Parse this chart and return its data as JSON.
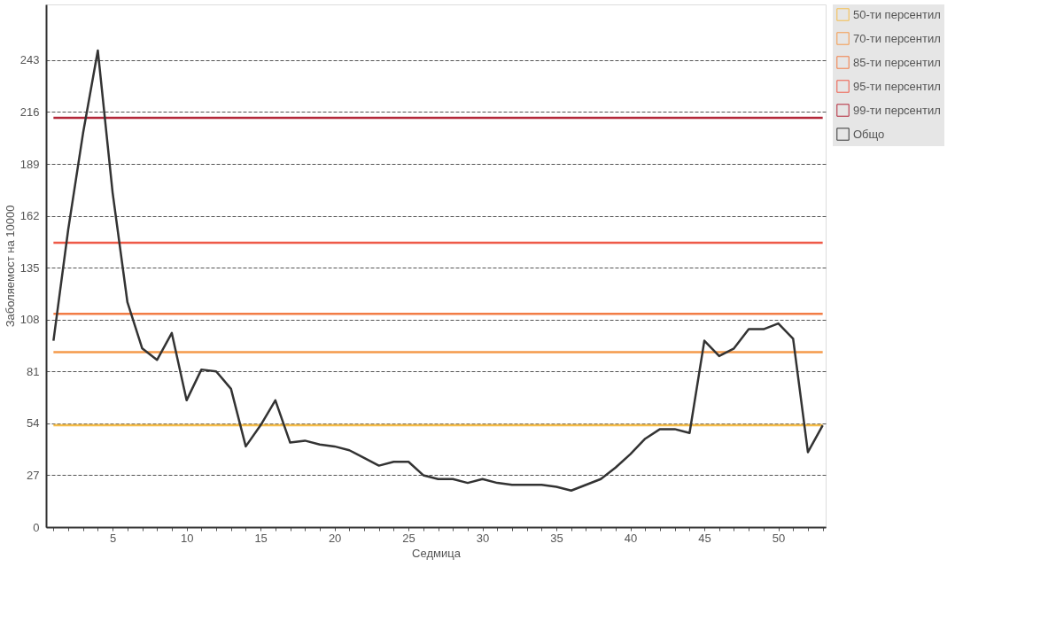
{
  "chart_data": {
    "type": "line",
    "xlabel": "Седмица",
    "ylabel": "Заболяемост на 10000",
    "xlim": [
      0.5,
      53.2
    ],
    "ylim": [
      0,
      272
    ],
    "yticks": [
      0,
      27,
      54,
      81,
      108,
      135,
      162,
      189,
      216,
      243
    ],
    "xticks": [
      {
        "value": 1,
        "label": null
      },
      {
        "value": 2,
        "label": null
      },
      {
        "value": 3,
        "label": null
      },
      {
        "value": 4,
        "label": null
      },
      5,
      {
        "value": 6,
        "label": null
      },
      {
        "value": 7,
        "label": null
      },
      {
        "value": 8,
        "label": null
      },
      {
        "value": 9,
        "label": null
      },
      10,
      {
        "value": 11,
        "label": null
      },
      {
        "value": 12,
        "label": null
      },
      {
        "value": 13,
        "label": null
      },
      {
        "value": 14,
        "label": null
      },
      15,
      {
        "value": 16,
        "label": null
      },
      {
        "value": 17,
        "label": null
      },
      {
        "value": 18,
        "label": null
      },
      {
        "value": 19,
        "label": null
      },
      20,
      {
        "value": 21,
        "label": null
      },
      {
        "value": 22,
        "label": null
      },
      {
        "value": 23,
        "label": null
      },
      {
        "value": 24,
        "label": null
      },
      25,
      {
        "value": 26,
        "label": null
      },
      {
        "value": 27,
        "label": null
      },
      {
        "value": 28,
        "label": null
      },
      {
        "value": 29,
        "label": null
      },
      30,
      {
        "value": 31,
        "label": null
      },
      {
        "value": 32,
        "label": null
      },
      {
        "value": 33,
        "label": null
      },
      {
        "value": 34,
        "label": null
      },
      35,
      {
        "value": 36,
        "label": null
      },
      {
        "value": 37,
        "label": null
      },
      {
        "value": 38,
        "label": null
      },
      {
        "value": 39,
        "label": null
      },
      40,
      {
        "value": 41,
        "label": null
      },
      {
        "value": 42,
        "label": null
      },
      {
        "value": 43,
        "label": null
      },
      {
        "value": 44,
        "label": null
      },
      45,
      {
        "value": 46,
        "label": null
      },
      {
        "value": 47,
        "label": null
      },
      {
        "value": 48,
        "label": null
      },
      {
        "value": 49,
        "label": null
      },
      50,
      {
        "value": 51,
        "label": null
      },
      {
        "value": 52,
        "label": null
      },
      {
        "value": 53,
        "label": null
      }
    ],
    "grid": "y",
    "legend": "top right",
    "marker": "none",
    "line_style": "solid",
    "series": [
      {
        "name": "50-ти персентил",
        "color": "#f5bd4a",
        "x": [
          1,
          53
        ],
        "values": [
          53,
          53
        ]
      },
      {
        "name": "70-ти персентил",
        "color": "#f59a4a",
        "x": [
          1,
          53
        ],
        "values": [
          91,
          91
        ]
      },
      {
        "name": "85-ти персентил",
        "color": "#f27c45",
        "x": [
          1,
          53
        ],
        "values": [
          111,
          111
        ]
      },
      {
        "name": "95-ти персентил",
        "color": "#ee5a48",
        "x": [
          1,
          53
        ],
        "values": [
          148,
          148
        ]
      },
      {
        "name": "99-ти персентил",
        "color": "#b3283a",
        "x": [
          1,
          53
        ],
        "values": [
          213,
          213
        ]
      },
      {
        "name": "Общо",
        "color": "#333333",
        "x": [
          1,
          2,
          3,
          4,
          5,
          6,
          7,
          8,
          9,
          10,
          11,
          12,
          13,
          14,
          15,
          16,
          17,
          18,
          19,
          20,
          21,
          22,
          23,
          24,
          25,
          26,
          27,
          28,
          29,
          30,
          31,
          32,
          33,
          34,
          35,
          36,
          37,
          38,
          39,
          40,
          41,
          42,
          43,
          44,
          45,
          46,
          47,
          48,
          49,
          50,
          51,
          52,
          53
        ],
        "values": [
          97,
          155,
          205,
          248,
          174,
          117,
          93,
          87,
          101,
          66,
          82,
          81,
          72,
          42,
          53,
          66,
          44,
          45,
          43,
          42,
          40,
          36,
          32,
          34,
          34,
          27,
          25,
          25,
          23,
          25,
          23,
          22,
          22,
          22,
          21,
          19,
          22,
          25,
          31,
          38,
          46,
          51,
          51,
          49,
          97,
          89,
          93,
          103,
          103,
          106,
          98,
          39,
          53
        ]
      }
    ]
  }
}
